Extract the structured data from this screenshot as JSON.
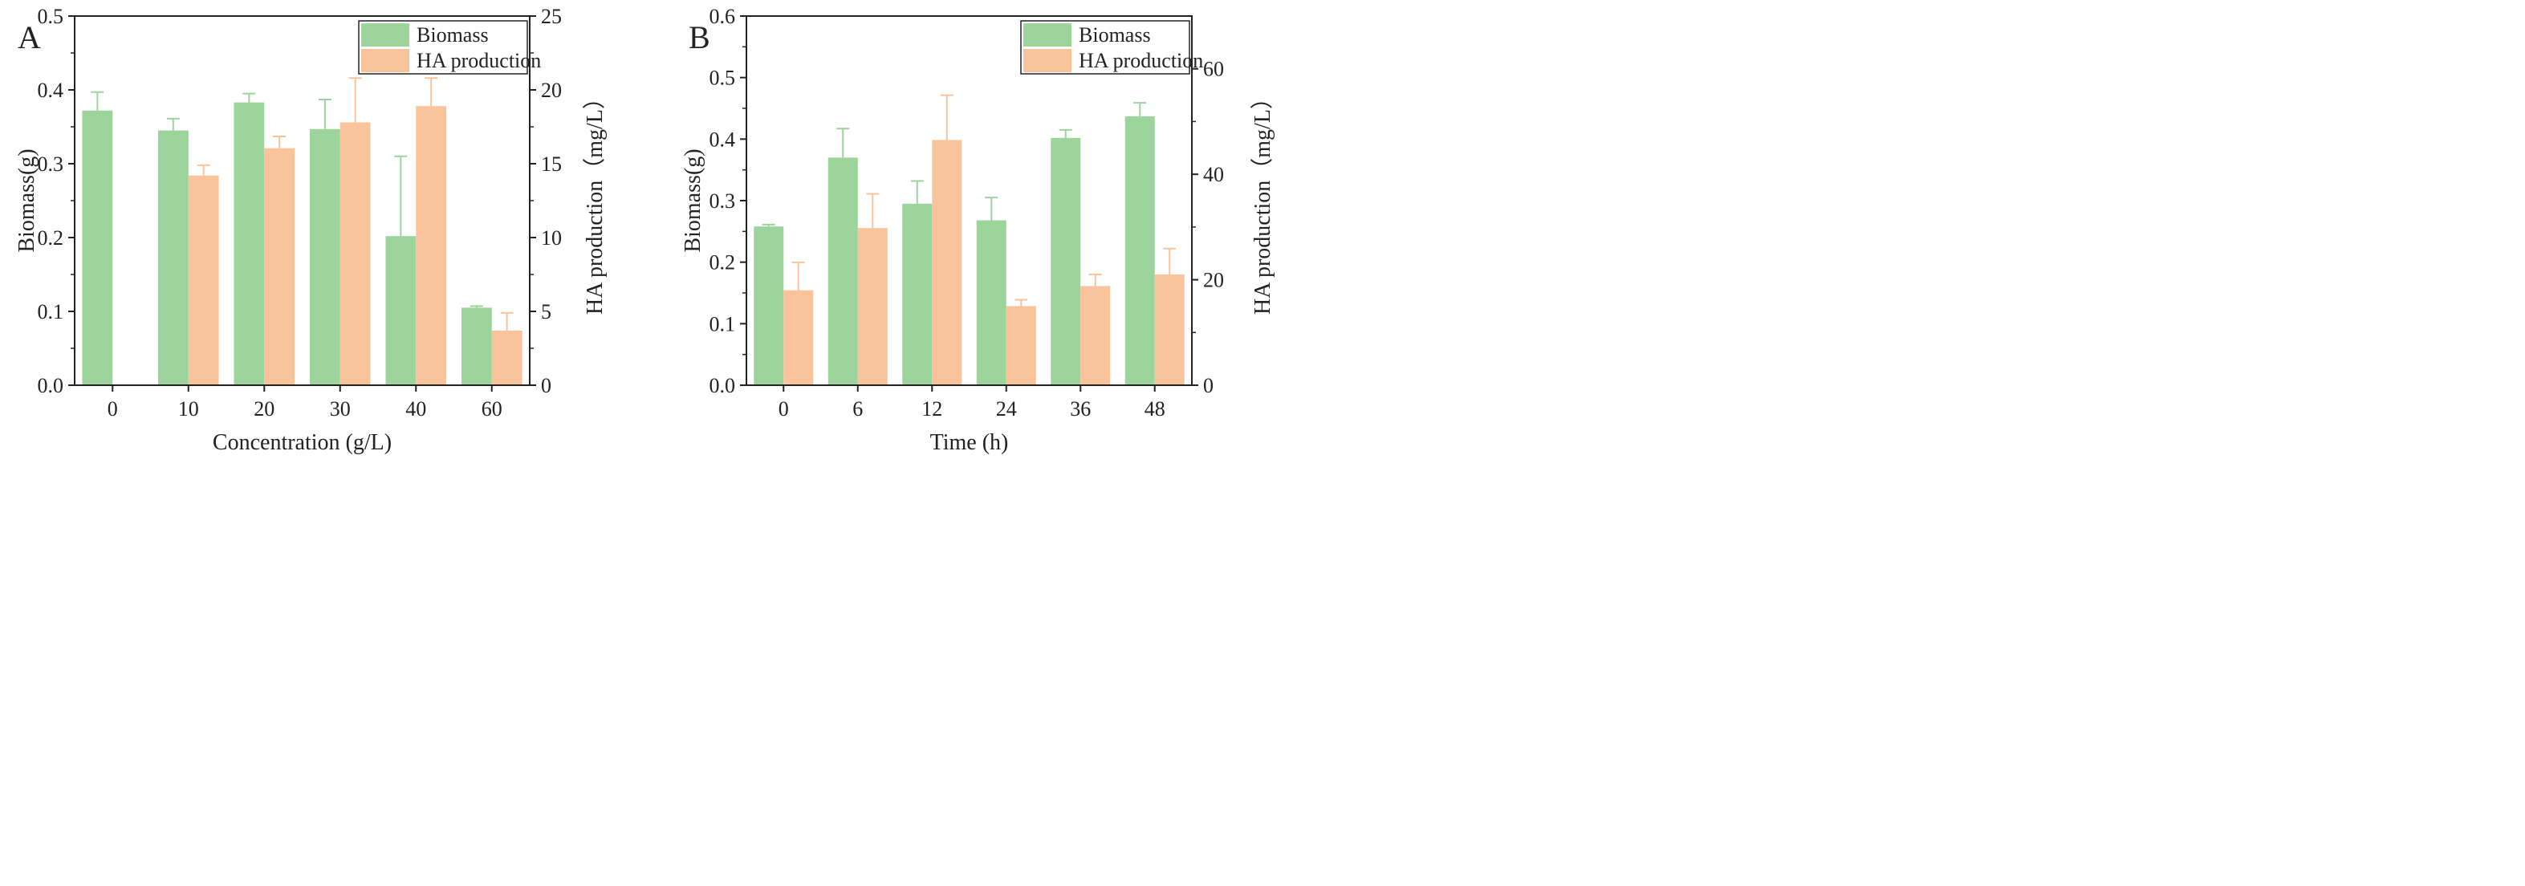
{
  "colors": {
    "biomass": "#9dd49c",
    "ha": "#f9c49c",
    "axis": "#222222"
  },
  "chart_data": [
    {
      "panel_label": "A",
      "type": "bar",
      "xlabel": "Concentration (g/L)",
      "categories": [
        "0",
        "10",
        "20",
        "30",
        "40",
        "60"
      ],
      "left_axis": {
        "label": "Biomass(g)",
        "lim": [
          0,
          0.5
        ],
        "ticks": [
          "0.0",
          "0.1",
          "0.2",
          "0.3",
          "0.4",
          "0.5"
        ]
      },
      "right_axis": {
        "label": "HA production（mg/L）",
        "lim": [
          0,
          25
        ],
        "ticks": [
          "0",
          "5",
          "10",
          "15",
          "20",
          "25"
        ]
      },
      "series": [
        {
          "name": "Biomass",
          "axis": "left",
          "values": [
            0.372,
            0.345,
            0.383,
            0.347,
            0.202,
            0.105
          ],
          "errors": [
            0.025,
            0.016,
            0.012,
            0.04,
            0.108,
            0.002
          ]
        },
        {
          "name": "HA production",
          "axis": "right",
          "values": [
            null,
            14.2,
            16.05,
            17.8,
            18.9,
            3.7
          ],
          "errors": [
            null,
            0.7,
            0.8,
            3.0,
            1.9,
            1.2
          ]
        }
      ],
      "legend": {
        "position": "top-right",
        "items": [
          "Biomass",
          "HA production"
        ]
      }
    },
    {
      "panel_label": "B",
      "type": "bar",
      "xlabel": "Time (h)",
      "categories": [
        "0",
        "6",
        "12",
        "24",
        "36",
        "48"
      ],
      "left_axis": {
        "label": "Biomass(g)",
        "lim": [
          0,
          0.6
        ],
        "ticks": [
          "0.0",
          "0.1",
          "0.2",
          "0.3",
          "0.4",
          "0.5",
          "0.6"
        ]
      },
      "right_axis": {
        "label": "HA production（mg/L）",
        "lim": [
          0,
          70
        ],
        "ticks": [
          "0",
          "20",
          "40",
          "60"
        ]
      },
      "series": [
        {
          "name": "Biomass",
          "axis": "left",
          "values": [
            0.258,
            0.37,
            0.295,
            0.268,
            0.402,
            0.437
          ],
          "errors": [
            0.003,
            0.047,
            0.037,
            0.037,
            0.013,
            0.022
          ]
        },
        {
          "name": "HA production",
          "axis": "right",
          "values": [
            18.0,
            29.8,
            46.5,
            15.0,
            18.8,
            21.0
          ],
          "errors": [
            5.3,
            6.5,
            8.5,
            1.2,
            2.2,
            4.9
          ]
        }
      ],
      "legend": {
        "position": "top-right",
        "items": [
          "Biomass",
          "HA production"
        ]
      }
    }
  ]
}
